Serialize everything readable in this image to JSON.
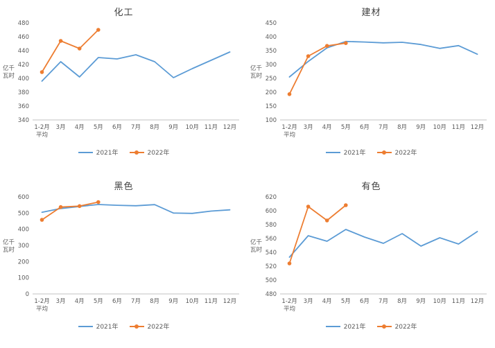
{
  "colors": {
    "series_2021": "#5B9BD5",
    "series_2022": "#ED7D31",
    "axis_line": "#C0C0C0",
    "tick_text": "#595959",
    "title_text": "#404040"
  },
  "chart_data": [
    {
      "type": "line",
      "title": "化工",
      "ylabel": "亿千瓦时",
      "xlabel": "",
      "grid": false,
      "legend_position": "bottom",
      "categories": [
        "1-2月\n平均",
        "3月",
        "4月",
        "5月",
        "6月",
        "7月",
        "8月",
        "9月",
        "10月",
        "11月",
        "12月"
      ],
      "ylim": [
        340,
        480
      ],
      "ytick_step": 20,
      "series": [
        {
          "name": "2021年",
          "color": "#5B9BD5",
          "marker": false,
          "values": [
            396,
            424,
            402,
            430,
            428,
            434,
            424,
            401,
            414,
            426,
            438
          ]
        },
        {
          "name": "2022年",
          "color": "#ED7D31",
          "marker": true,
          "values": [
            409,
            454,
            443,
            470,
            null,
            null,
            null,
            null,
            null,
            null,
            null
          ]
        }
      ]
    },
    {
      "type": "line",
      "title": "建材",
      "ylabel": "亿千瓦时",
      "xlabel": "",
      "grid": false,
      "legend_position": "bottom",
      "categories": [
        "1-2月\n平均",
        "3月",
        "4月",
        "5月",
        "6月",
        "7月",
        "8月",
        "9月",
        "10月",
        "11月",
        "12月"
      ],
      "ylim": [
        100,
        450
      ],
      "ytick_step": 50,
      "series": [
        {
          "name": "2021年",
          "color": "#5B9BD5",
          "marker": false,
          "values": [
            255,
            311,
            360,
            383,
            381,
            378,
            380,
            372,
            358,
            368,
            337
          ]
        },
        {
          "name": "2022年",
          "color": "#ED7D31",
          "marker": true,
          "values": [
            193,
            330,
            367,
            377,
            null,
            null,
            null,
            null,
            null,
            null,
            null
          ]
        }
      ]
    },
    {
      "type": "line",
      "title": "黑色",
      "ylabel": "亿千瓦时",
      "xlabel": "",
      "grid": false,
      "legend_position": "bottom",
      "categories": [
        "1-2月\n平均",
        "3月",
        "4月",
        "5月",
        "6月",
        "7月",
        "8月",
        "9月",
        "10月",
        "11月",
        "12月"
      ],
      "ylim": [
        0,
        600
      ],
      "ytick_step": 100,
      "series": [
        {
          "name": "2021年",
          "color": "#5B9BD5",
          "marker": false,
          "values": [
            505,
            528,
            541,
            553,
            548,
            545,
            552,
            500,
            498,
            512,
            520
          ]
        },
        {
          "name": "2022年",
          "color": "#ED7D31",
          "marker": true,
          "values": [
            458,
            537,
            543,
            568,
            null,
            null,
            null,
            null,
            null,
            null,
            null
          ]
        }
      ]
    },
    {
      "type": "line",
      "title": "有色",
      "ylabel": "亿千瓦时",
      "xlabel": "",
      "grid": false,
      "legend_position": "bottom",
      "categories": [
        "1-2月\n平均",
        "3月",
        "4月",
        "5月",
        "6月",
        "7月",
        "8月",
        "9月",
        "10月",
        "11月",
        "12月"
      ],
      "ylim": [
        480,
        620
      ],
      "ytick_step": 20,
      "series": [
        {
          "name": "2021年",
          "color": "#5B9BD5",
          "marker": false,
          "values": [
            533,
            564,
            556,
            573,
            562,
            553,
            567,
            549,
            561,
            552,
            570
          ]
        },
        {
          "name": "2022年",
          "color": "#ED7D31",
          "marker": true,
          "values": [
            524,
            606,
            586,
            608,
            null,
            null,
            null,
            null,
            null,
            null,
            null
          ]
        }
      ]
    }
  ]
}
